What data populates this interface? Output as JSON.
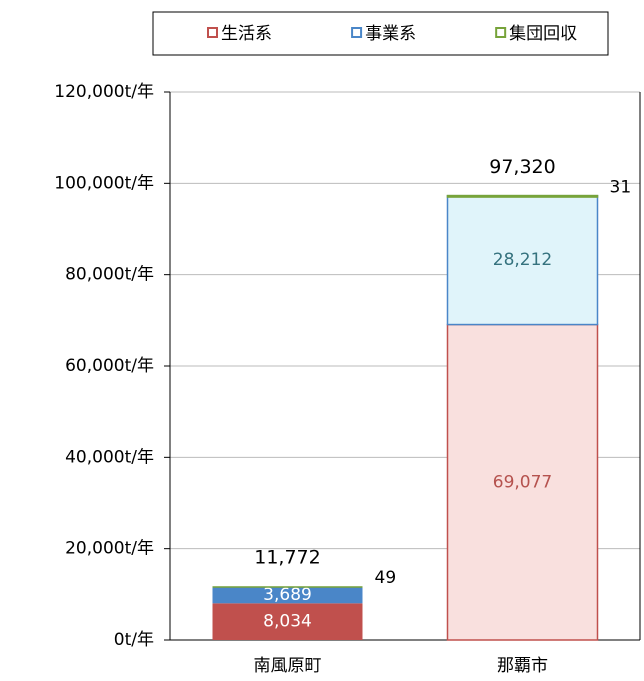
{
  "chart_data": {
    "type": "stacked-bar",
    "categories": [
      "南風原町",
      "那覇市"
    ],
    "series": [
      {
        "name": "生活系",
        "color": "#c0504d",
        "colors": [
          "#c0504d",
          "#f9e0de"
        ],
        "label_colors": [
          "#ffffff",
          "#b5524e"
        ],
        "values": [
          8034,
          69077
        ],
        "value_labels": [
          "8,034",
          "69,077"
        ]
      },
      {
        "name": "事業系",
        "color": "#4a86c8",
        "colors": [
          "#4a86c8",
          "#e0f4fa"
        ],
        "label_colors": [
          "#ffffff",
          "#35727e"
        ],
        "values": [
          3689,
          28212
        ],
        "value_labels": [
          "3,689",
          "28,212"
        ]
      },
      {
        "name": "集団回収",
        "color": "#77a33a",
        "colors": [
          "#77a33a",
          "#77a33a"
        ],
        "label_colors": [
          "#000000",
          "#000000"
        ],
        "values": [
          49,
          31
        ]
      }
    ],
    "totals": {
      "values": [
        11772,
        97320
      ],
      "value_labels": [
        "11,772",
        "97,320"
      ]
    },
    "ylim": [
      0,
      120000
    ],
    "yticks": [
      {
        "value": 0,
        "label": "0t/年"
      },
      {
        "value": 20000,
        "label": "20,000t/年"
      },
      {
        "value": 40000,
        "label": "40,000t/年"
      },
      {
        "value": 60000,
        "label": "60,000t/年"
      },
      {
        "value": 80000,
        "label": "80,000t/年"
      },
      {
        "value": 100000,
        "label": "100,000t/年"
      },
      {
        "value": 120000,
        "label": "120,000t/年"
      }
    ],
    "grid": true,
    "legend": "top"
  }
}
